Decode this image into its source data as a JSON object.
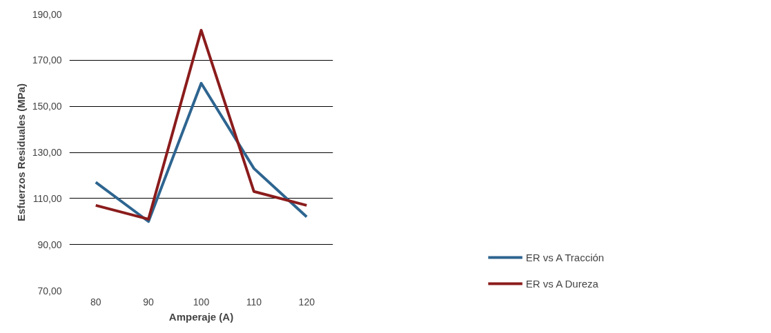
{
  "chart_data": {
    "type": "line",
    "xlabel": "Amperaje (A)",
    "ylabel": "Esfuerzos Residuales (MPa)",
    "categories": [
      "80",
      "90",
      "100",
      "110",
      "120"
    ],
    "series": [
      {
        "name": "ER vs A Tracción",
        "color": "#2e6590",
        "values": [
          117,
          100,
          160,
          123,
          102
        ]
      },
      {
        "name": "ER vs A Dureza",
        "color": "#8b1c1c",
        "values": [
          107,
          101,
          183,
          113,
          107
        ]
      }
    ],
    "ylim": [
      70,
      190
    ],
    "yticks": [
      {
        "value": 70,
        "label": "70,00"
      },
      {
        "value": 90,
        "label": "90,00"
      },
      {
        "value": 110,
        "label": "110,00"
      },
      {
        "value": 130,
        "label": "130,00"
      },
      {
        "value": 150,
        "label": "150,00"
      },
      {
        "value": 170,
        "label": "170,00"
      },
      {
        "value": 190,
        "label": "190,00"
      }
    ],
    "grid": "y",
    "legend": "bottom right",
    "marker": "none",
    "line_style": "solid"
  }
}
